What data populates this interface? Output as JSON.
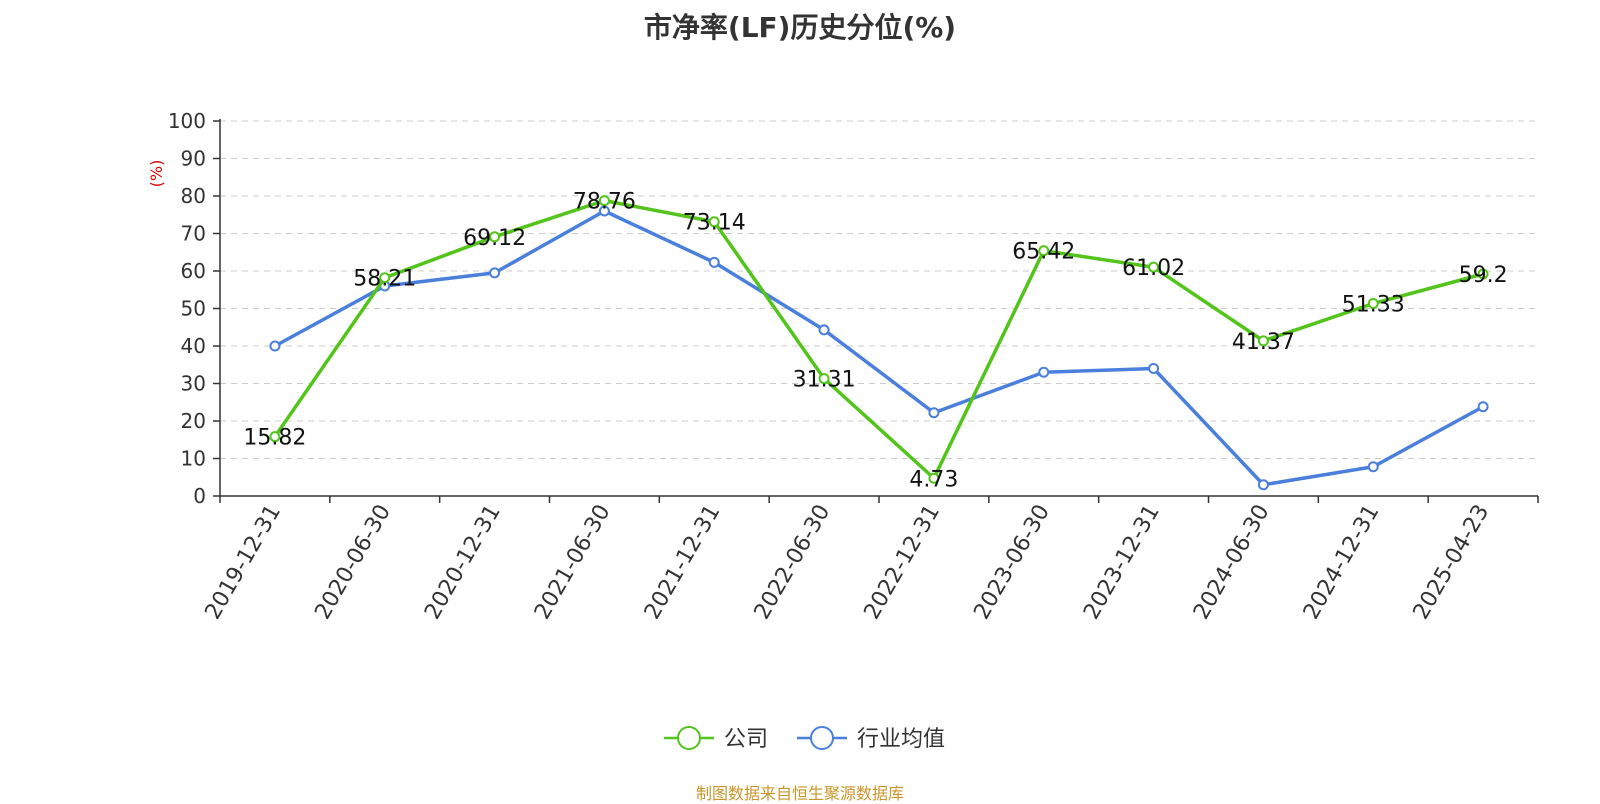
{
  "title": "市净率(LF)历史分位(%)",
  "source_text": "制图数据来自恒生聚源数据库",
  "colors": {
    "company": "#52c41a",
    "industry": "#4a7fdc",
    "unit": "#e00000",
    "source": "#c8962a",
    "grid": "#cccccc",
    "axis": "#333333"
  },
  "chart_data": {
    "type": "line",
    "title": "市净率(LF)历史分位(%)",
    "ylabel": "(%)",
    "ylim": [
      0,
      100
    ],
    "yticks": [
      0,
      10,
      20,
      30,
      40,
      50,
      60,
      70,
      80,
      90,
      100
    ],
    "grid": true,
    "legend_position": "bottom-center",
    "categories": [
      "2019-12-31",
      "2020-06-30",
      "2020-12-31",
      "2021-06-30",
      "2021-12-31",
      "2022-06-30",
      "2022-12-31",
      "2023-06-30",
      "2023-12-31",
      "2024-06-30",
      "2024-12-31",
      "2025-04-23"
    ],
    "series": [
      {
        "name": "公司",
        "color": "#52c41a",
        "values": [
          15.82,
          58.21,
          69.12,
          78.76,
          73.14,
          31.31,
          4.73,
          65.42,
          61.02,
          41.37,
          51.33,
          59.2
        ],
        "labels": [
          "15.82",
          "58.21",
          "69.12",
          "78.76",
          "73.14",
          "31.31",
          "4.73",
          "65.42",
          "61.02",
          "41.37",
          "51.33",
          "59.2"
        ],
        "show_labels": true
      },
      {
        "name": "行业均值",
        "color": "#4a7fdc",
        "values": [
          40,
          56,
          59.5,
          76,
          62.3,
          44.3,
          22.2,
          33,
          34,
          3,
          7.8,
          23.8
        ],
        "show_labels": false
      }
    ]
  }
}
